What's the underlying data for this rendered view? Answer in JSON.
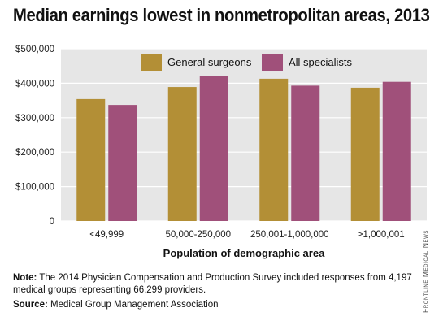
{
  "title": "Median earnings lowest in nonmetropolitan areas, 2013",
  "note_label": "Note:",
  "note_text": "The 2014 Physician Compensation and Production Survey included responses from 4,197 medical groups representing 66,299 providers.",
  "source_label": "Source:",
  "source_text": "Medical Group Management Association",
  "credit": "Frontline Medical News",
  "colors": {
    "general_surgeons": "#b38f36",
    "all_specialists": "#a0507a",
    "plot_background": "#e6e6e6",
    "gridline": "#ffffff"
  },
  "chart_data": {
    "type": "bar",
    "title": "Median earnings lowest in nonmetropolitan areas, 2013",
    "xlabel": "Population of demographic area",
    "ylabel": "",
    "categories": [
      "<49,999",
      "50,000-250,000",
      "250,001-1,000,000",
      ">1,000,001"
    ],
    "series": [
      {
        "name": "General surgeons",
        "color": "#b38f36",
        "values": [
          354000,
          389000,
          413000,
          387000
        ]
      },
      {
        "name": "All specialists",
        "color": "#a0507a",
        "values": [
          337000,
          422000,
          393000,
          404000
        ]
      }
    ],
    "ylim": [
      0,
      500000
    ],
    "yticks": [
      {
        "value": 0,
        "label": "0"
      },
      {
        "value": 100000,
        "label": "$100,000"
      },
      {
        "value": 200000,
        "label": "$200,000"
      },
      {
        "value": 300000,
        "label": "$300,000"
      },
      {
        "value": 400000,
        "label": "$400,000"
      },
      {
        "value": 500000,
        "label": "$500,000"
      }
    ],
    "grid": true,
    "legend_position": "top"
  }
}
